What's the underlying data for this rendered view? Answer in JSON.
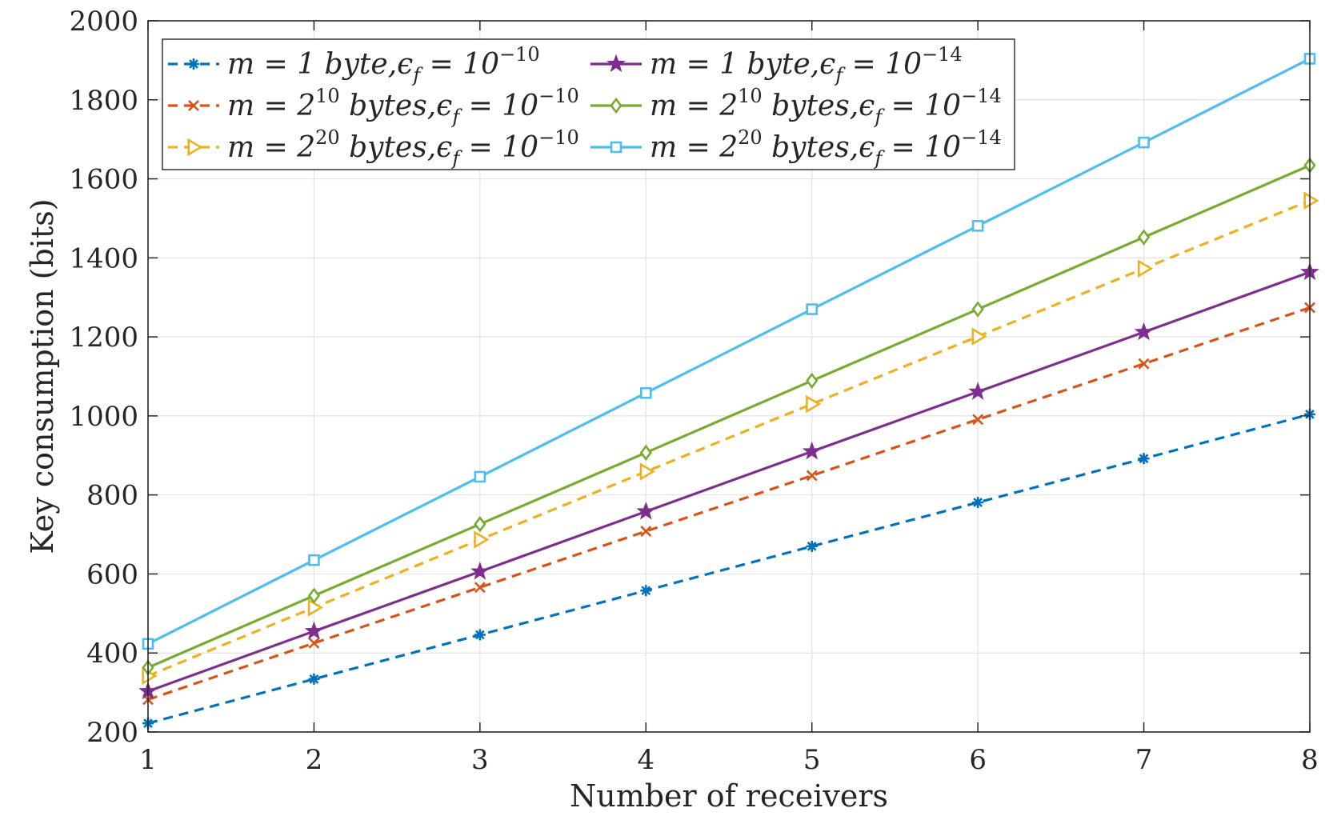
{
  "chart_data": {
    "type": "line",
    "title": "",
    "xlabel": "Number of receivers",
    "ylabel": "Key consumption (bits)",
    "xlim": [
      1,
      8
    ],
    "ylim": [
      200,
      2000
    ],
    "x": [
      1,
      2,
      3,
      4,
      5,
      6,
      7,
      8
    ],
    "xticks": [
      "1",
      "2",
      "3",
      "4",
      "5",
      "6",
      "7",
      "8"
    ],
    "yticks": [
      "200",
      "400",
      "600",
      "800",
      "1000",
      "1200",
      "1400",
      "1600",
      "1800",
      "2000"
    ],
    "grid": true,
    "legend_position": "top-left",
    "series": [
      {
        "name": "m = 1 byte, ϵ_f = 10^−10",
        "legend": {
          "pre": "m = 1 byte,ϵ",
          "sub": "f",
          "mid": " = 10",
          "sup": "−10"
        },
        "color": "#0072BD",
        "dash": true,
        "marker": "asterisk",
        "values": [
          222,
          334,
          446,
          558,
          670,
          781,
          892,
          1004
        ]
      },
      {
        "name": "m = 2^10 bytes, ϵ_f = 10^−10",
        "legend": {
          "pre": "m = 2",
          "presup": "10",
          "pre2": " bytes,ϵ",
          "sub": "f",
          "mid": " = 10",
          "sup": "−10"
        },
        "color": "#D95319",
        "dash": true,
        "marker": "x",
        "values": [
          282,
          425,
          566,
          708,
          849,
          991,
          1132,
          1274
        ]
      },
      {
        "name": "m = 2^20 bytes, ϵ_f = 10^−10",
        "legend": {
          "pre": "m = 2",
          "presup": "20",
          "pre2": " bytes,ϵ",
          "sub": "f",
          "mid": " = 10",
          "sup": "−10"
        },
        "color": "#EDB120",
        "dash": true,
        "marker": "triangle-right",
        "values": [
          342,
          515,
          687,
          859,
          1030,
          1201,
          1373,
          1545
        ]
      },
      {
        "name": "m = 1 byte, ϵ_f = 10^−14",
        "legend": {
          "pre": "m = 1 byte,ϵ",
          "sub": "f",
          "mid": " = 10",
          "sup": "−14"
        },
        "color": "#7E2F8E",
        "dash": false,
        "marker": "star",
        "values": [
          303,
          455,
          606,
          758,
          910,
          1061,
          1212,
          1364
        ]
      },
      {
        "name": "m = 2^10 bytes, ϵ_f = 10^−14",
        "legend": {
          "pre": "m = 2",
          "presup": "10",
          "pre2": " bytes,ϵ",
          "sub": "f",
          "mid": " = 10",
          "sup": "−14"
        },
        "color": "#77AC30",
        "dash": false,
        "marker": "diamond",
        "values": [
          363,
          545,
          726,
          907,
          1089,
          1270,
          1452,
          1634
        ]
      },
      {
        "name": "m = 2^20 bytes, ϵ_f = 10^−14",
        "legend": {
          "pre": "m = 2",
          "presup": "20",
          "pre2": " bytes,ϵ",
          "sub": "f",
          "mid": " = 10",
          "sup": "−14"
        },
        "color": "#4DBEEE",
        "dash": false,
        "marker": "square",
        "values": [
          423,
          635,
          846,
          1058,
          1270,
          1481,
          1692,
          1904
        ]
      }
    ]
  }
}
